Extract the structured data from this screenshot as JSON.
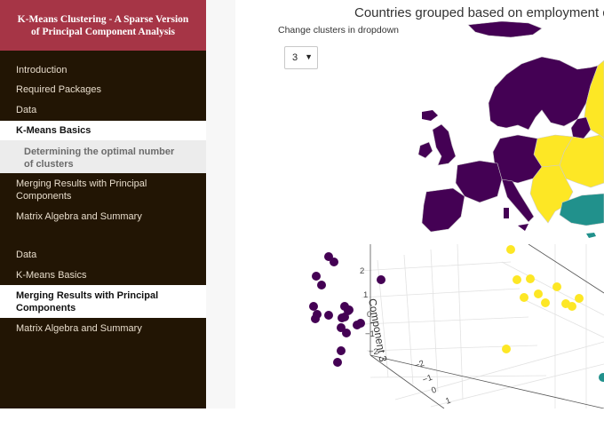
{
  "sidebar": {
    "title": "K-Means Clustering - A Sparse Version of Principal Component Analysis",
    "items": [
      {
        "label": "Introduction"
      },
      {
        "label": "Required Packages"
      },
      {
        "label": "Data"
      },
      {
        "label": "K-Means Basics"
      },
      {
        "label": "Determining the optimal number of clusters"
      },
      {
        "label": "Merging Results with Principal Components"
      },
      {
        "label": "Matrix Algebra and Summary"
      },
      {
        "label": "Data"
      },
      {
        "label": "K-Means Basics"
      },
      {
        "label": "Merging Results with Principal Components"
      },
      {
        "label": "Matrix Algebra and Summary"
      }
    ]
  },
  "main": {
    "map_title": "Countries grouped based on employment d",
    "dropdown_label": "Change clusters in dropdown",
    "dropdown_value": "3"
  },
  "plot3d": {
    "z_axis_title": "Component 3",
    "z_ticks": [
      "2",
      "1",
      "0",
      "−1",
      "−2"
    ],
    "other_ticks": [
      "−2",
      "−1",
      "0",
      "1"
    ]
  },
  "colors": {
    "cluster_purple": "#440154",
    "cluster_yellow": "#fde725",
    "cluster_teal": "#21918c",
    "sidebar_bg": "#221504",
    "sidebar_header": "#a63546"
  }
}
